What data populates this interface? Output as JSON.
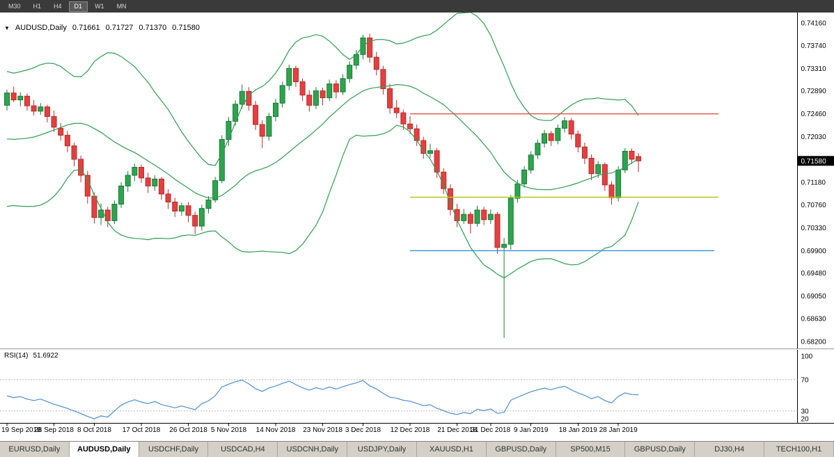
{
  "toolbar": {
    "timeframes": [
      {
        "label": "M30",
        "active": false
      },
      {
        "label": "H1",
        "active": false
      },
      {
        "label": "H4",
        "active": false
      },
      {
        "label": "D1",
        "active": true
      },
      {
        "label": "W1",
        "active": false
      },
      {
        "label": "MN",
        "active": false
      }
    ]
  },
  "chart_header": {
    "symbol": "AUDUSD,Daily",
    "open": "0.71661",
    "high": "0.71727",
    "low": "0.71370",
    "close": "0.71580"
  },
  "price_axis": {
    "labels": [
      "0.74160",
      "0.73740",
      "0.73310",
      "0.72890",
      "0.72460",
      "0.72030",
      "0.71180",
      "0.70760",
      "0.70330",
      "0.69900",
      "0.69480",
      "0.69050",
      "0.68630",
      "0.68200"
    ],
    "current_price": "0.71580"
  },
  "rsi_panel": {
    "name": "RSI(14)",
    "value": "51.6922",
    "scale_labels": [
      "100",
      "70",
      "30",
      "20"
    ],
    "levels": [
      70,
      30
    ]
  },
  "date_axis": {
    "labels": [
      {
        "text": "19 Sep 2018",
        "index": 0
      },
      {
        "text": "28 Sep 2018",
        "index": 7
      },
      {
        "text": "8 Oct 2018",
        "index": 13
      },
      {
        "text": "17 Oct 2018",
        "index": 20
      },
      {
        "text": "26 Oct 2018",
        "index": 27
      },
      {
        "text": "5 Nov 2018",
        "index": 33
      },
      {
        "text": "14 Nov 2018",
        "index": 40
      },
      {
        "text": "23 Nov 2018",
        "index": 47
      },
      {
        "text": "3 Dec 2018",
        "index": 53
      },
      {
        "text": "12 Dec 2018",
        "index": 60
      },
      {
        "text": "21 Dec 2018",
        "index": 67
      },
      {
        "text": "31 Dec 2018",
        "index": 72
      },
      {
        "text": "9 Jan 2019",
        "index": 78
      },
      {
        "text": "18 Jan 2019",
        "index": 85
      },
      {
        "text": "28 Jan 2019",
        "index": 91
      }
    ]
  },
  "bottom_tabs": [
    {
      "label": "EURUSD,Daily",
      "active": false
    },
    {
      "label": "AUDUSD,Daily",
      "active": true
    },
    {
      "label": "USDCHF,Daily",
      "active": false
    },
    {
      "label": "USDCAD,H4",
      "active": false
    },
    {
      "label": "USDCNH,Daily",
      "active": false
    },
    {
      "label": "USDJPY,Daily",
      "active": false
    },
    {
      "label": "XAUUSD,H1",
      "active": false
    },
    {
      "label": "GBPUSD,Daily",
      "active": false
    },
    {
      "label": "SP500,M15",
      "active": false
    },
    {
      "label": "GBPUSD,Daily",
      "active": false
    },
    {
      "label": "DJ30,H4",
      "active": false
    },
    {
      "label": "TECH100,H1",
      "active": false
    }
  ],
  "colors": {
    "bull": "#2fa44f",
    "bull_border": "#157a36",
    "bear": "#e44040",
    "bear_border": "#b52b2b",
    "bollinger": "#2e9e50",
    "hline_red": "#e05a52",
    "hline_yellow": "#b8c613",
    "hline_blue": "#3f97dd",
    "rsi_line": "#4b8ed0",
    "rsi_level": "#b8b8b8",
    "axis_line": "#000000",
    "price_marker_bg": "#000000",
    "price_marker_fg": "#ffffff",
    "chart_bg": "#ffffff"
  },
  "chart_data": {
    "type": "candlestick",
    "title": "AUDUSD,Daily",
    "y_range": [
      0.682,
      0.7416
    ],
    "candle_count": 95,
    "ohlc": [
      [
        0.7262,
        0.7291,
        0.7252,
        0.7285
      ],
      [
        0.7285,
        0.7297,
        0.7268,
        0.7272
      ],
      [
        0.7272,
        0.7286,
        0.726,
        0.7279
      ],
      [
        0.7279,
        0.7284,
        0.7252,
        0.7261
      ],
      [
        0.7261,
        0.7272,
        0.7243,
        0.7251
      ],
      [
        0.7251,
        0.7266,
        0.7244,
        0.7259
      ],
      [
        0.7259,
        0.7263,
        0.723,
        0.7241
      ],
      [
        0.7241,
        0.7252,
        0.7212,
        0.7221
      ],
      [
        0.7219,
        0.7229,
        0.7196,
        0.7206
      ],
      [
        0.7206,
        0.7214,
        0.7174,
        0.7186
      ],
      [
        0.7186,
        0.7192,
        0.7148,
        0.7161
      ],
      [
        0.7161,
        0.7168,
        0.7118,
        0.7131
      ],
      [
        0.7131,
        0.7139,
        0.7078,
        0.7092
      ],
      [
        0.7092,
        0.7099,
        0.7041,
        0.7052
      ],
      [
        0.7052,
        0.7078,
        0.7038,
        0.7066
      ],
      [
        0.7066,
        0.7072,
        0.7034,
        0.7046
      ],
      [
        0.7046,
        0.7084,
        0.704,
        0.7077
      ],
      [
        0.7077,
        0.7118,
        0.707,
        0.7111
      ],
      [
        0.7111,
        0.7139,
        0.71,
        0.7131
      ],
      [
        0.7131,
        0.7153,
        0.712,
        0.7146
      ],
      [
        0.7146,
        0.7151,
        0.7117,
        0.7126
      ],
      [
        0.7126,
        0.7136,
        0.7098,
        0.7111
      ],
      [
        0.7111,
        0.7131,
        0.7102,
        0.7124
      ],
      [
        0.7124,
        0.7128,
        0.7085,
        0.7096
      ],
      [
        0.7096,
        0.7105,
        0.7068,
        0.7081
      ],
      [
        0.7081,
        0.7089,
        0.7053,
        0.7064
      ],
      [
        0.7064,
        0.708,
        0.7055,
        0.7074
      ],
      [
        0.7074,
        0.7081,
        0.7043,
        0.7056
      ],
      [
        0.7056,
        0.7063,
        0.7021,
        0.7036
      ],
      [
        0.7036,
        0.7076,
        0.7028,
        0.7069
      ],
      [
        0.7069,
        0.7092,
        0.706,
        0.7085
      ],
      [
        0.7085,
        0.7128,
        0.708,
        0.7121
      ],
      [
        0.7121,
        0.7206,
        0.7116,
        0.7198
      ],
      [
        0.7198,
        0.724,
        0.7186,
        0.7232
      ],
      [
        0.7232,
        0.7271,
        0.7224,
        0.7264
      ],
      [
        0.7264,
        0.7301,
        0.7256,
        0.7288
      ],
      [
        0.7288,
        0.7296,
        0.7252,
        0.7262
      ],
      [
        0.7262,
        0.727,
        0.7216,
        0.7226
      ],
      [
        0.7226,
        0.7234,
        0.7182,
        0.7204
      ],
      [
        0.7204,
        0.7248,
        0.7196,
        0.7241
      ],
      [
        0.7241,
        0.7274,
        0.7232,
        0.7266
      ],
      [
        0.7266,
        0.7306,
        0.7258,
        0.7299
      ],
      [
        0.7299,
        0.7338,
        0.729,
        0.7331
      ],
      [
        0.7331,
        0.7336,
        0.7296,
        0.7306
      ],
      [
        0.7306,
        0.7312,
        0.727,
        0.7281
      ],
      [
        0.7281,
        0.729,
        0.725,
        0.7262
      ],
      [
        0.7262,
        0.7296,
        0.7255,
        0.7289
      ],
      [
        0.7289,
        0.7295,
        0.7262,
        0.7276
      ],
      [
        0.7276,
        0.731,
        0.727,
        0.7302
      ],
      [
        0.7302,
        0.7309,
        0.7275,
        0.7287
      ],
      [
        0.7287,
        0.732,
        0.7281,
        0.7312
      ],
      [
        0.7312,
        0.7344,
        0.7304,
        0.7337
      ],
      [
        0.7337,
        0.7365,
        0.7329,
        0.7357
      ],
      [
        0.7357,
        0.7394,
        0.7348,
        0.7388
      ],
      [
        0.7388,
        0.7396,
        0.7342,
        0.7352
      ],
      [
        0.7352,
        0.7362,
        0.7318,
        0.7329
      ],
      [
        0.7329,
        0.7336,
        0.7282,
        0.7293
      ],
      [
        0.7293,
        0.7302,
        0.7246,
        0.7257
      ],
      [
        0.7257,
        0.7272,
        0.7238,
        0.7248
      ],
      [
        0.7248,
        0.7254,
        0.7216,
        0.7227
      ],
      [
        0.7227,
        0.7242,
        0.7208,
        0.7218
      ],
      [
        0.7218,
        0.7226,
        0.7186,
        0.7196
      ],
      [
        0.7196,
        0.7203,
        0.7162,
        0.7172
      ],
      [
        0.7172,
        0.719,
        0.7164,
        0.7177
      ],
      [
        0.7177,
        0.7182,
        0.7126,
        0.7137
      ],
      [
        0.7137,
        0.7144,
        0.7096,
        0.7106
      ],
      [
        0.7106,
        0.7114,
        0.7056,
        0.7067
      ],
      [
        0.7067,
        0.7078,
        0.7034,
        0.7046
      ],
      [
        0.7046,
        0.7068,
        0.704,
        0.7058
      ],
      [
        0.7058,
        0.7063,
        0.7022,
        0.7041
      ],
      [
        0.7041,
        0.7074,
        0.7035,
        0.7066
      ],
      [
        0.7066,
        0.7072,
        0.7038,
        0.7048
      ],
      [
        0.7048,
        0.7067,
        0.704,
        0.7058
      ],
      [
        0.7058,
        0.7062,
        0.6984,
        0.6996
      ],
      [
        0.6996,
        0.7014,
        0.6827,
        0.7002
      ],
      [
        0.7002,
        0.7094,
        0.6992,
        0.7088
      ],
      [
        0.7088,
        0.7122,
        0.708,
        0.7115
      ],
      [
        0.7115,
        0.7148,
        0.7108,
        0.7141
      ],
      [
        0.7141,
        0.7176,
        0.7134,
        0.7169
      ],
      [
        0.7169,
        0.7198,
        0.7161,
        0.7191
      ],
      [
        0.7191,
        0.7216,
        0.7183,
        0.7209
      ],
      [
        0.7209,
        0.7214,
        0.7186,
        0.7196
      ],
      [
        0.7196,
        0.7226,
        0.7189,
        0.7219
      ],
      [
        0.7219,
        0.724,
        0.7211,
        0.7233
      ],
      [
        0.7233,
        0.7238,
        0.7198,
        0.7208
      ],
      [
        0.7208,
        0.7215,
        0.7174,
        0.7184
      ],
      [
        0.7184,
        0.7192,
        0.7152,
        0.7163
      ],
      [
        0.7163,
        0.717,
        0.7122,
        0.7134
      ],
      [
        0.7134,
        0.7158,
        0.7126,
        0.7151
      ],
      [
        0.7151,
        0.7155,
        0.7102,
        0.7113
      ],
      [
        0.7113,
        0.712,
        0.7076,
        0.7089
      ],
      [
        0.7089,
        0.7148,
        0.7082,
        0.7141
      ],
      [
        0.7141,
        0.7182,
        0.7135,
        0.7176
      ],
      [
        0.7176,
        0.7181,
        0.7152,
        0.7161
      ],
      [
        0.71661,
        0.71727,
        0.7137,
        0.7158
      ]
    ],
    "indicator_seed_closes": [
      0.7312,
      0.729,
      0.7262,
      0.7235,
      0.7206,
      0.7178,
      0.7152,
      0.713,
      0.7108,
      0.7092,
      0.7103,
      0.7128,
      0.7156,
      0.7184,
      0.721,
      0.7232,
      0.7248,
      0.7258,
      0.7264,
      0.7261
    ],
    "bollinger": {
      "period": 20,
      "deviation": 2
    },
    "rsi": {
      "period": 14,
      "value": 51.6922
    },
    "hlines": [
      {
        "price": 0.7246,
        "color_key": "hline_red",
        "from_index": 60,
        "to_x": 1032
      },
      {
        "price": 0.709,
        "color_key": "hline_yellow",
        "from_index": 60,
        "to_x": 1032
      },
      {
        "price": 0.699,
        "color_key": "hline_blue",
        "from_index": 60,
        "to_x": 1026
      }
    ]
  }
}
